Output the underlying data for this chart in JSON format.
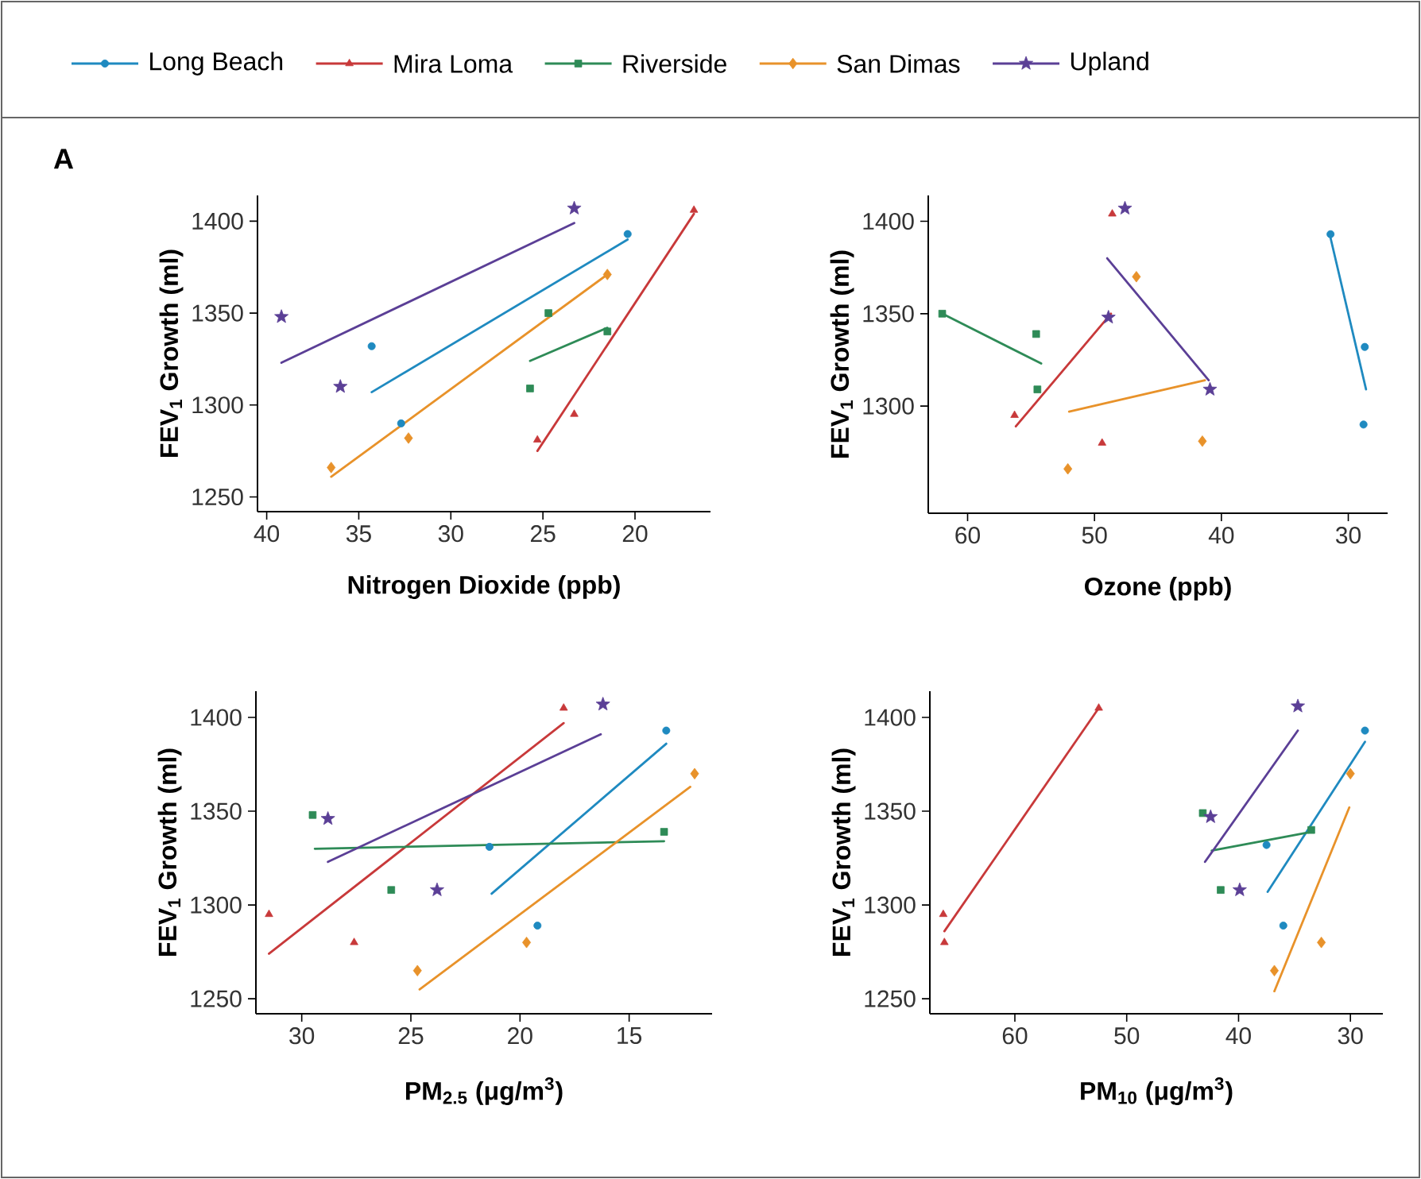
{
  "chart_data": [
    {
      "type": "scatter",
      "xlabel": "Nitrogen Dioxide (ppb)",
      "ylabel": "FEV$_{1}$ Growth (ml)",
      "annotations": [
        "A"
      ],
      "legend": "top",
      "xlim": [
        40.5,
        15.9
      ],
      "ylim": [
        1242,
        1414
      ],
      "xticks": [
        40,
        35,
        30,
        25,
        20
      ],
      "yticks": [
        1250,
        1300,
        1350,
        1400
      ],
      "series": [
        {
          "name": "Long Beach",
          "color": "#1f8ac0",
          "marker": "circle",
          "x": [
            20.4,
            34.3,
            32.7
          ],
          "values": [
            1393,
            1332,
            1290
          ]
        },
        {
          "name": "Mira Loma",
          "color": "#c8393a",
          "marker": "triangle",
          "x": [
            16.8,
            23.3,
            25.3
          ],
          "values": [
            1406,
            1295,
            1281
          ]
        },
        {
          "name": "Riverside",
          "color": "#2e8b57",
          "marker": "square",
          "x": [
            24.7,
            21.5,
            25.7
          ],
          "values": [
            1350,
            1340,
            1309
          ]
        },
        {
          "name": "San Dimas",
          "color": "#e8922a",
          "marker": "diamond",
          "x": [
            21.5,
            36.5,
            32.3
          ],
          "values": [
            1371,
            1266,
            1282
          ]
        },
        {
          "name": "Upland",
          "color": "#5b3f96",
          "marker": "star",
          "x": [
            23.3,
            39.2,
            36.0
          ],
          "values": [
            1407,
            1348,
            1310
          ]
        },
        {
          "type": "line",
          "color": "#1f8ac0",
          "x": [
            34.3,
            20.4
          ],
          "values": [
            1307,
            1390
          ]
        },
        {
          "type": "line",
          "color": "#c8393a",
          "x": [
            25.3,
            16.8
          ],
          "values": [
            1275,
            1404
          ]
        },
        {
          "type": "line",
          "color": "#2e8b57",
          "x": [
            25.7,
            21.5
          ],
          "values": [
            1324,
            1342
          ]
        },
        {
          "type": "line",
          "color": "#e8922a",
          "x": [
            36.5,
            21.5
          ],
          "values": [
            1261,
            1371
          ]
        },
        {
          "type": "line",
          "color": "#5b3f96",
          "x": [
            39.2,
            23.3
          ],
          "values": [
            1323,
            1399
          ]
        }
      ]
    },
    {
      "type": "scatter",
      "xlabel": "Ozone (ppb)",
      "ylabel": "FEV$_{1}$ Growth (ml)",
      "xlim": [
        63.1,
        26.9
      ],
      "ylim": [
        1242,
        1414
      ],
      "xticks": [
        60,
        50,
        40,
        30
      ],
      "yticks": [
        1300,
        1350,
        1400
      ],
      "series": [
        {
          "color": "#1f8ac0",
          "marker": "circle",
          "x": [
            31.4,
            28.7,
            28.8
          ],
          "values": [
            1393,
            1332,
            1290
          ]
        },
        {
          "color": "#c8393a",
          "marker": "triangle",
          "x": [
            48.6,
            56.3,
            49.4
          ],
          "values": [
            1404,
            1295,
            1280
          ]
        },
        {
          "color": "#2e8b57",
          "marker": "square",
          "x": [
            62.0,
            54.6,
            54.5
          ],
          "values": [
            1350,
            1339,
            1309
          ]
        },
        {
          "color": "#e8922a",
          "marker": "diamond",
          "x": [
            46.7,
            52.1,
            41.5
          ],
          "values": [
            1370,
            1266,
            1281
          ]
        },
        {
          "color": "#5b3f96",
          "marker": "star",
          "x": [
            47.6,
            48.9,
            40.9
          ],
          "values": [
            1407,
            1348,
            1309
          ]
        },
        {
          "type": "line",
          "color": "#1f8ac0",
          "x": [
            31.5,
            28.6
          ],
          "values": [
            1394,
            1309
          ]
        },
        {
          "type": "line",
          "color": "#c8393a",
          "x": [
            56.2,
            48.7
          ],
          "values": [
            1289,
            1350
          ]
        },
        {
          "type": "line",
          "color": "#2e8b57",
          "x": [
            62.0,
            54.2
          ],
          "values": [
            1350,
            1323
          ]
        },
        {
          "type": "line",
          "color": "#e8922a",
          "x": [
            52.0,
            41.3
          ],
          "values": [
            1297,
            1314
          ]
        },
        {
          "type": "line",
          "color": "#5b3f96",
          "x": [
            49.0,
            41.0
          ],
          "values": [
            1380,
            1314
          ]
        }
      ]
    },
    {
      "type": "scatter",
      "xlabel": "PM$_{2.5}$ (μg/m$^{3}$)",
      "ylabel": "FEV$_{1}$ Growth (ml)",
      "xlim": [
        32.1,
        11.2
      ],
      "ylim": [
        1242,
        1414
      ],
      "xticks": [
        30,
        25,
        20,
        15
      ],
      "yticks": [
        1250,
        1300,
        1350,
        1400
      ],
      "series": [
        {
          "color": "#1f8ac0",
          "marker": "circle",
          "x": [
            13.3,
            19.2,
            21.4
          ],
          "values": [
            1393,
            1289,
            1331
          ]
        },
        {
          "color": "#c8393a",
          "marker": "triangle",
          "x": [
            18.0,
            31.5,
            27.6
          ],
          "values": [
            1405,
            1295,
            1280
          ]
        },
        {
          "color": "#2e8b57",
          "marker": "square",
          "x": [
            29.5,
            25.9,
            13.4
          ],
          "values": [
            1348,
            1308,
            1339
          ]
        },
        {
          "color": "#e8922a",
          "marker": "diamond",
          "x": [
            12.0,
            24.7,
            19.7
          ],
          "values": [
            1370,
            1265,
            1280
          ]
        },
        {
          "color": "#5b3f96",
          "marker": "star",
          "x": [
            16.2,
            28.8,
            23.8
          ],
          "values": [
            1407,
            1346,
            1308
          ]
        },
        {
          "type": "line",
          "color": "#1f8ac0",
          "x": [
            21.3,
            13.3
          ],
          "values": [
            1306,
            1386
          ]
        },
        {
          "type": "line",
          "color": "#c8393a",
          "x": [
            31.5,
            18.0
          ],
          "values": [
            1274,
            1397
          ]
        },
        {
          "type": "line",
          "color": "#2e8b57",
          "x": [
            29.4,
            13.4
          ],
          "values": [
            1330,
            1334
          ]
        },
        {
          "type": "line",
          "color": "#e8922a",
          "x": [
            24.6,
            12.2
          ],
          "values": [
            1255,
            1363
          ]
        },
        {
          "type": "line",
          "color": "#5b3f96",
          "x": [
            28.8,
            16.3
          ],
          "values": [
            1323,
            1391
          ]
        }
      ]
    },
    {
      "type": "scatter",
      "xlabel": "PM$_{10}$ (μg/m$^{3}$)",
      "ylabel": "FEV$_{1}$ Growth (ml)",
      "xlim": [
        67.6,
        27.1
      ],
      "ylim": [
        1242,
        1414
      ],
      "xticks": [
        60,
        50,
        40,
        30
      ],
      "yticks": [
        1250,
        1300,
        1350,
        1400
      ],
      "series": [
        {
          "color": "#1f8ac0",
          "marker": "circle",
          "x": [
            28.7,
            36.0,
            37.5
          ],
          "values": [
            1393,
            1289,
            1332
          ]
        },
        {
          "color": "#c8393a",
          "marker": "triangle",
          "x": [
            52.5,
            66.4,
            66.3
          ],
          "values": [
            1405,
            1295,
            1280
          ]
        },
        {
          "color": "#2e8b57",
          "marker": "square",
          "x": [
            43.2,
            41.6,
            33.5
          ],
          "values": [
            1349,
            1308,
            1340
          ]
        },
        {
          "color": "#e8922a",
          "marker": "diamond",
          "x": [
            30.0,
            32.6,
            36.8
          ],
          "values": [
            1370,
            1280,
            1265
          ]
        },
        {
          "color": "#5b3f96",
          "marker": "star",
          "x": [
            34.7,
            42.5,
            39.9
          ],
          "values": [
            1406,
            1347,
            1308
          ]
        },
        {
          "type": "line",
          "color": "#1f8ac0",
          "x": [
            37.4,
            28.7
          ],
          "values": [
            1307,
            1387
          ]
        },
        {
          "type": "line",
          "color": "#c8393a",
          "x": [
            66.3,
            52.5
          ],
          "values": [
            1286,
            1405
          ]
        },
        {
          "type": "line",
          "color": "#2e8b57",
          "x": [
            42.4,
            33.5
          ],
          "values": [
            1329,
            1339
          ]
        },
        {
          "type": "line",
          "color": "#e8922a",
          "x": [
            36.8,
            30.1
          ],
          "values": [
            1254,
            1352
          ]
        },
        {
          "type": "line",
          "color": "#5b3f96",
          "x": [
            43.0,
            34.7
          ],
          "values": [
            1323,
            1393
          ]
        }
      ]
    }
  ]
}
